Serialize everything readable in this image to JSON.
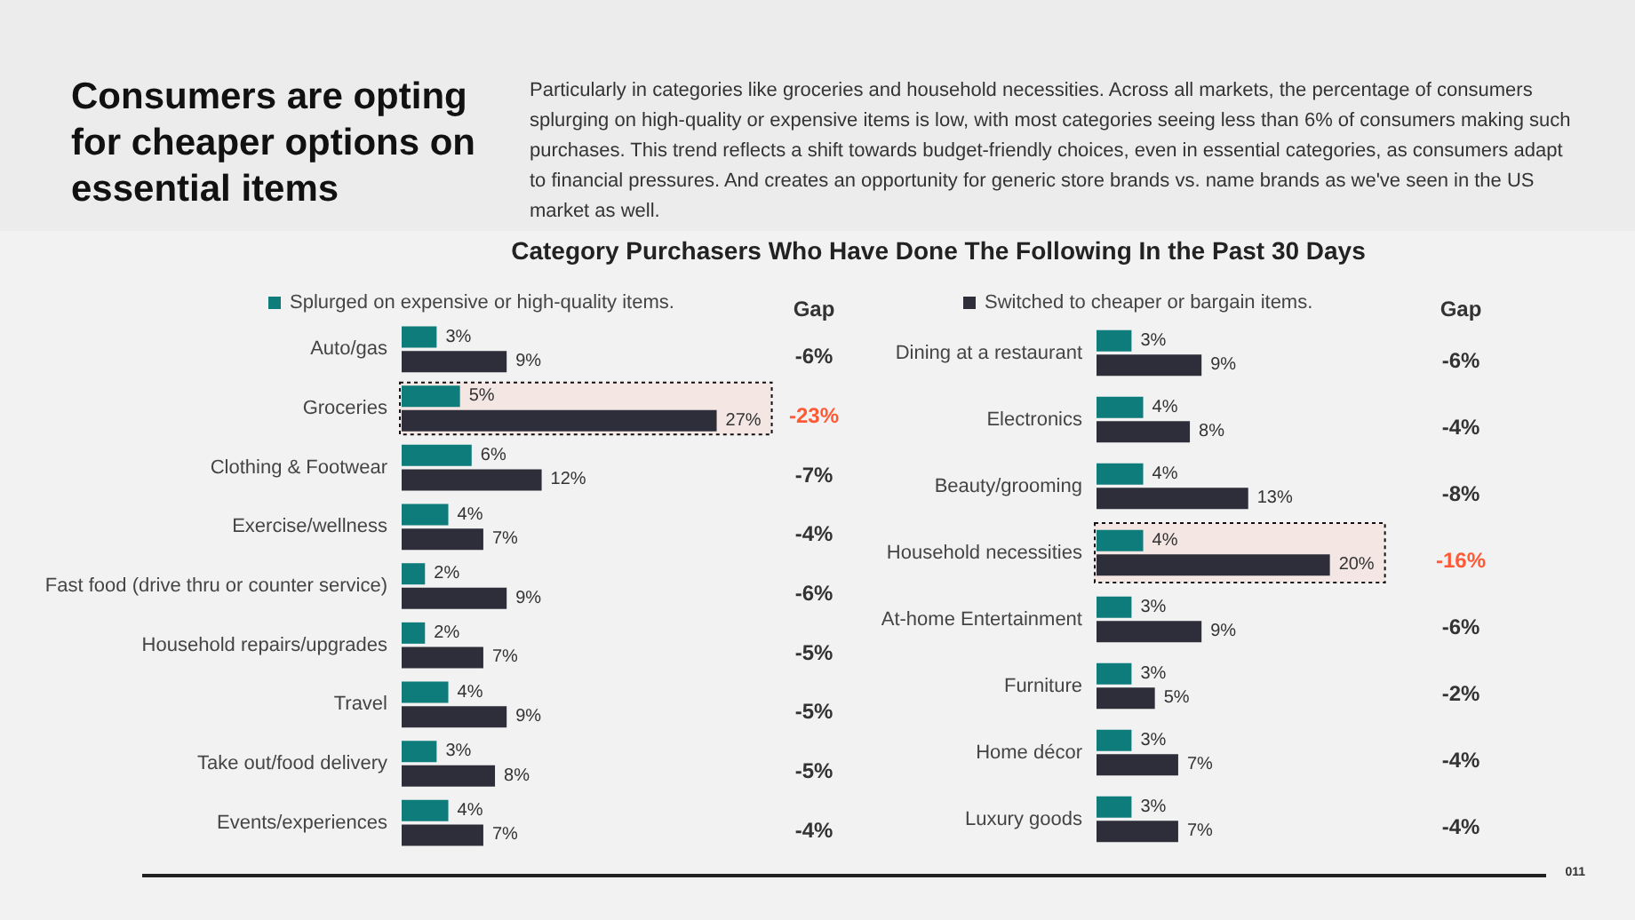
{
  "chart_data": [
    {
      "type": "bar",
      "orientation": "horizontal",
      "title": "Consumers are opting for cheaper options on essential items",
      "subtitle": "Particularly in categories like groceries and household necessities. Across all markets, the percentage of consumers splurging on high-quality or expensive items is low, with most categories seeing less than 6% of consumers making such purchases. This trend reflects a shift towards budget-friendly choices, even in essential categories, as consumers adapt to financial pressures. And creates an opportunity for generic store brands vs. name brands as we've seen in the US market as well.",
      "categories": [
        "Auto/gas",
        "Groceries",
        "Clothing & Footwear",
        "Exercise/wellness",
        "Fast food (drive thru or counter service)",
        "Household repairs/upgrades",
        "Travel",
        "Take out/food delivery",
        "Events/experiences"
      ],
      "series": [
        {
          "name": "Splurged on expensive or high-quality items.",
          "color": "#0e7c7b",
          "values": [
            3,
            5,
            6,
            4,
            2,
            2,
            4,
            3,
            4
          ],
          "value_labels": [
            "3%",
            "5%",
            "6%",
            "4%",
            "2%",
            "2%",
            "4%",
            "3%",
            "4%"
          ]
        },
        {
          "color": "#2e2e3a",
          "values": [
            9,
            27,
            12,
            7,
            9,
            7,
            9,
            8,
            7
          ],
          "value_labels": [
            "9%",
            "27%",
            "12%",
            "7%",
            "9%",
            "7%",
            "9%",
            "8%",
            "7%"
          ]
        }
      ],
      "legend": "top left",
      "bands": [
        {
          "axis": "y",
          "from": "Groceries",
          "to": "Groceries",
          "color": "#ff5a36"
        }
      ],
      "annotations": [
        "Category Purchasers Who Have Done The Following In the Past 30 Days",
        "Gap",
        "-6%",
        "-23%",
        "-7%",
        "-4%",
        "-6%",
        "-5%",
        "-5%",
        "-5%",
        "-4%",
        "011"
      ]
    },
    {
      "type": "bar",
      "orientation": "horizontal",
      "categories": [
        "Dining at a restaurant",
        "Electronics",
        "Beauty/grooming",
        "Household necessities",
        "At-home Entertainment",
        "Furniture",
        "Home décor",
        "Luxury goods"
      ],
      "series": [
        {
          "color": "#0e7c7b",
          "values": [
            3,
            4,
            4,
            4,
            3,
            3,
            3,
            3
          ],
          "value_labels": [
            "3%",
            "4%",
            "4%",
            "4%",
            "3%",
            "3%",
            "3%",
            "3%"
          ]
        },
        {
          "name": "Switched to cheaper or bargain items.",
          "color": "#2e2e3a",
          "values": [
            9,
            8,
            13,
            20,
            9,
            5,
            7,
            7
          ],
          "value_labels": [
            "9%",
            "8%",
            "13%",
            "20%",
            "9%",
            "5%",
            "7%",
            "7%"
          ]
        }
      ],
      "legend": "top left",
      "bands": [
        {
          "axis": "y",
          "from": "Household necessities",
          "to": "Household necessities",
          "color": "#ff5a36"
        }
      ],
      "annotations": [
        "Gap",
        "-6%",
        "-4%",
        "-8%",
        "-16%",
        "-6%",
        "-2%",
        "-4%",
        "-4%"
      ]
    }
  ]
}
